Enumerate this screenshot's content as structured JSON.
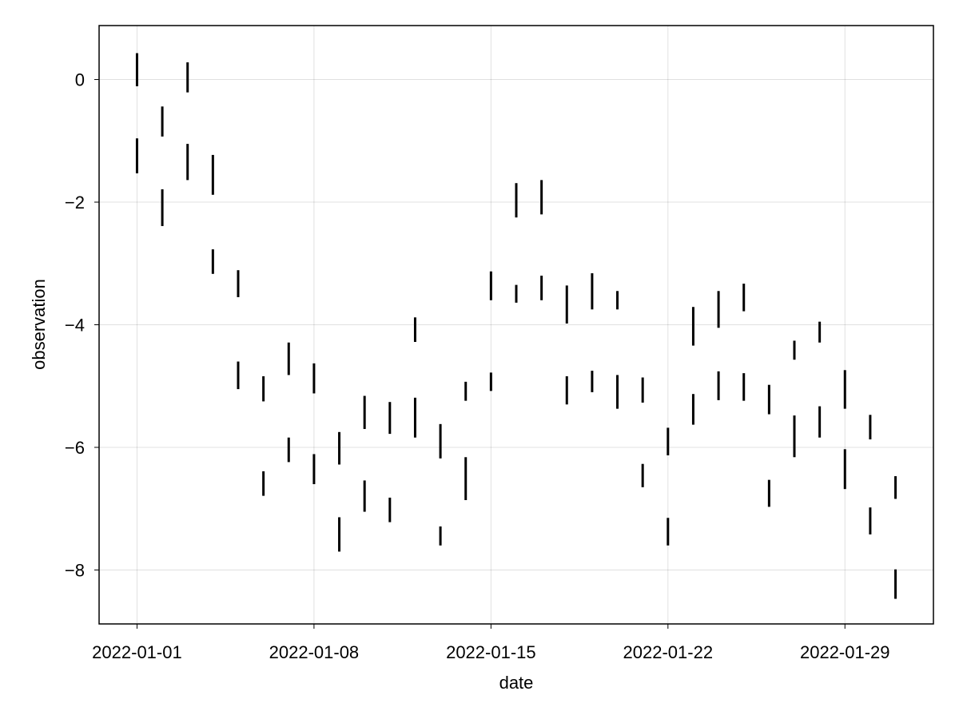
{
  "chart_data": {
    "type": "rangebar",
    "xlabel": "date",
    "ylabel": "observation",
    "x_tick_labels": [
      "2022-01-01",
      "2022-01-08",
      "2022-01-15",
      "2022-01-22",
      "2022-01-29"
    ],
    "y_tick_labels": [
      "0",
      "−2",
      "−4",
      "−6",
      "−8"
    ],
    "x_tick_days": [
      0,
      7,
      14,
      21,
      28
    ],
    "y_tick_values": [
      0,
      -2,
      -4,
      -6,
      -8
    ],
    "xlim_days": [
      -1.5,
      31.5
    ],
    "ylim": [
      -8.88,
      0.88
    ],
    "grid": true,
    "mark_color": "#000000",
    "series": [
      {
        "values": [
          {
            "x": "2022-01-01",
            "low": -0.11,
            "high": 0.43
          },
          {
            "x": "2022-01-02",
            "low": -0.93,
            "high": -0.44
          },
          {
            "x": "2022-01-03",
            "low": -0.21,
            "high": 0.28
          },
          {
            "x": "2022-01-04",
            "low": -1.88,
            "high": -1.23
          },
          {
            "x": "2022-01-05",
            "low": -3.55,
            "high": -3.11
          },
          {
            "x": "2022-01-06",
            "low": -5.25,
            "high": -4.84
          },
          {
            "x": "2022-01-07",
            "low": -4.82,
            "high": -4.29
          },
          {
            "x": "2022-01-08",
            "low": -5.12,
            "high": -4.63
          },
          {
            "x": "2022-01-09",
            "low": -6.28,
            "high": -5.75
          },
          {
            "x": "2022-01-10",
            "low": -5.7,
            "high": -5.16
          },
          {
            "x": "2022-01-11",
            "low": -5.78,
            "high": -5.26
          },
          {
            "x": "2022-01-12",
            "low": -4.28,
            "high": -3.88
          },
          {
            "x": "2022-01-13",
            "low": -6.18,
            "high": -5.62
          },
          {
            "x": "2022-01-14",
            "low": -5.24,
            "high": -4.93
          },
          {
            "x": "2022-01-15",
            "low": -3.6,
            "high": -3.13
          },
          {
            "x": "2022-01-16",
            "low": -2.25,
            "high": -1.69
          },
          {
            "x": "2022-01-17",
            "low": -2.2,
            "high": -1.64
          },
          {
            "x": "2022-01-18",
            "low": -3.98,
            "high": -3.36
          },
          {
            "x": "2022-01-19",
            "low": -3.75,
            "high": -3.16
          },
          {
            "x": "2022-01-20",
            "low": -3.75,
            "high": -3.45
          },
          {
            "x": "2022-01-21",
            "low": -5.27,
            "high": -4.86
          },
          {
            "x": "2022-01-22",
            "low": -6.13,
            "high": -5.68
          },
          {
            "x": "2022-01-23",
            "low": -4.34,
            "high": -3.71
          },
          {
            "x": "2022-01-24",
            "low": -4.05,
            "high": -3.45
          },
          {
            "x": "2022-01-25",
            "low": -3.78,
            "high": -3.33
          },
          {
            "x": "2022-01-26",
            "low": -5.46,
            "high": -4.98
          },
          {
            "x": "2022-01-27",
            "low": -4.57,
            "high": -4.26
          },
          {
            "x": "2022-01-28",
            "low": -4.29,
            "high": -3.95
          },
          {
            "x": "2022-01-29",
            "low": -5.37,
            "high": -4.74
          },
          {
            "x": "2022-01-30",
            "low": -5.87,
            "high": -5.47
          },
          {
            "x": "2022-01-31",
            "low": -6.84,
            "high": -6.47
          }
        ]
      },
      {
        "values": [
          {
            "x": "2022-01-01",
            "low": -1.53,
            "high": -0.96
          },
          {
            "x": "2022-01-02",
            "low": -2.39,
            "high": -1.79
          },
          {
            "x": "2022-01-03",
            "low": -1.64,
            "high": -1.05
          },
          {
            "x": "2022-01-04",
            "low": -3.17,
            "high": -2.77
          },
          {
            "x": "2022-01-05",
            "low": -5.05,
            "high": -4.6
          },
          {
            "x": "2022-01-06",
            "low": -6.79,
            "high": -6.39
          },
          {
            "x": "2022-01-07",
            "low": -6.24,
            "high": -5.84
          },
          {
            "x": "2022-01-08",
            "low": -6.6,
            "high": -6.11
          },
          {
            "x": "2022-01-09",
            "low": -7.7,
            "high": -7.14
          },
          {
            "x": "2022-01-10",
            "low": -7.05,
            "high": -6.54
          },
          {
            "x": "2022-01-11",
            "low": -7.22,
            "high": -6.82
          },
          {
            "x": "2022-01-12",
            "low": -5.84,
            "high": -5.19
          },
          {
            "x": "2022-01-13",
            "low": -7.6,
            "high": -7.29
          },
          {
            "x": "2022-01-14",
            "low": -6.86,
            "high": -6.16
          },
          {
            "x": "2022-01-15",
            "low": -5.08,
            "high": -4.78
          },
          {
            "x": "2022-01-16",
            "low": -3.64,
            "high": -3.35
          },
          {
            "x": "2022-01-17",
            "low": -3.6,
            "high": -3.2
          },
          {
            "x": "2022-01-18",
            "low": -5.3,
            "high": -4.84
          },
          {
            "x": "2022-01-19",
            "low": -5.1,
            "high": -4.75
          },
          {
            "x": "2022-01-20",
            "low": -5.37,
            "high": -4.82
          },
          {
            "x": "2022-01-21",
            "low": -6.65,
            "high": -6.27
          },
          {
            "x": "2022-01-22",
            "low": -7.6,
            "high": -7.15
          },
          {
            "x": "2022-01-23",
            "low": -5.63,
            "high": -5.13
          },
          {
            "x": "2022-01-24",
            "low": -5.23,
            "high": -4.76
          },
          {
            "x": "2022-01-25",
            "low": -5.24,
            "high": -4.79
          },
          {
            "x": "2022-01-26",
            "low": -6.97,
            "high": -6.53
          },
          {
            "x": "2022-01-27",
            "low": -6.16,
            "high": -5.48
          },
          {
            "x": "2022-01-28",
            "low": -5.84,
            "high": -5.33
          },
          {
            "x": "2022-01-29",
            "low": -6.68,
            "high": -6.03
          },
          {
            "x": "2022-01-30",
            "low": -7.42,
            "high": -6.98
          },
          {
            "x": "2022-01-31",
            "low": -8.47,
            "high": -7.99
          }
        ]
      }
    ]
  }
}
